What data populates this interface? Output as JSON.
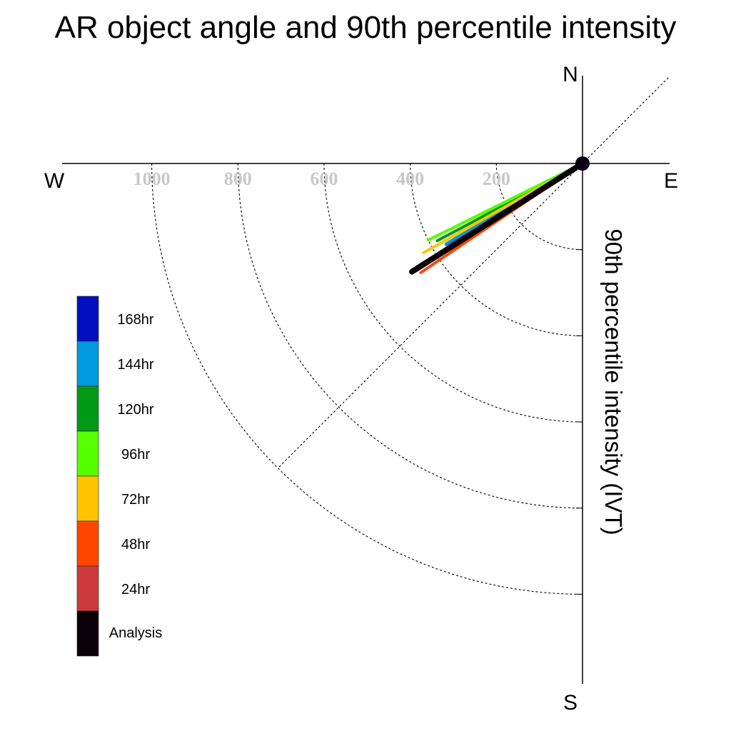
{
  "chart_data": {
    "type": "polar-vector",
    "title": "AR object angle and 90th percentile intensity",
    "axis_label": "90th percentile intensity (IVT)",
    "compass": {
      "north": "N",
      "south": "S",
      "east": "E",
      "west": "W"
    },
    "radial_ticks": [
      200,
      400,
      600,
      800,
      1000
    ],
    "r_max": 1200,
    "diagonal_reference_line_deg": 45,
    "legend_placement": "left",
    "series": [
      {
        "name": "168hr",
        "color": "#0010c0",
        "angle_deg": 30.7,
        "magnitude": 368
      },
      {
        "name": "144hr",
        "color": "#0099de",
        "angle_deg": 30.5,
        "magnitude": 368
      },
      {
        "name": "120hr",
        "color": "#009a16",
        "angle_deg": 28.0,
        "magnitude": 382
      },
      {
        "name": "96hr",
        "color": "#55ff00",
        "angle_deg": 26.4,
        "magnitude": 400
      },
      {
        "name": "72hr",
        "color": "#ffc400",
        "angle_deg": 29.3,
        "magnitude": 423
      },
      {
        "name": "48hr",
        "color": "#ff4500",
        "angle_deg": 34.0,
        "magnitude": 453
      },
      {
        "name": "24hr",
        "color": "#cc3b3b",
        "angle_deg": 32.6,
        "magnitude": 460
      },
      {
        "name": "Analysis",
        "color": "#0a0008",
        "angle_deg": 32.4,
        "magnitude": 469
      }
    ]
  }
}
